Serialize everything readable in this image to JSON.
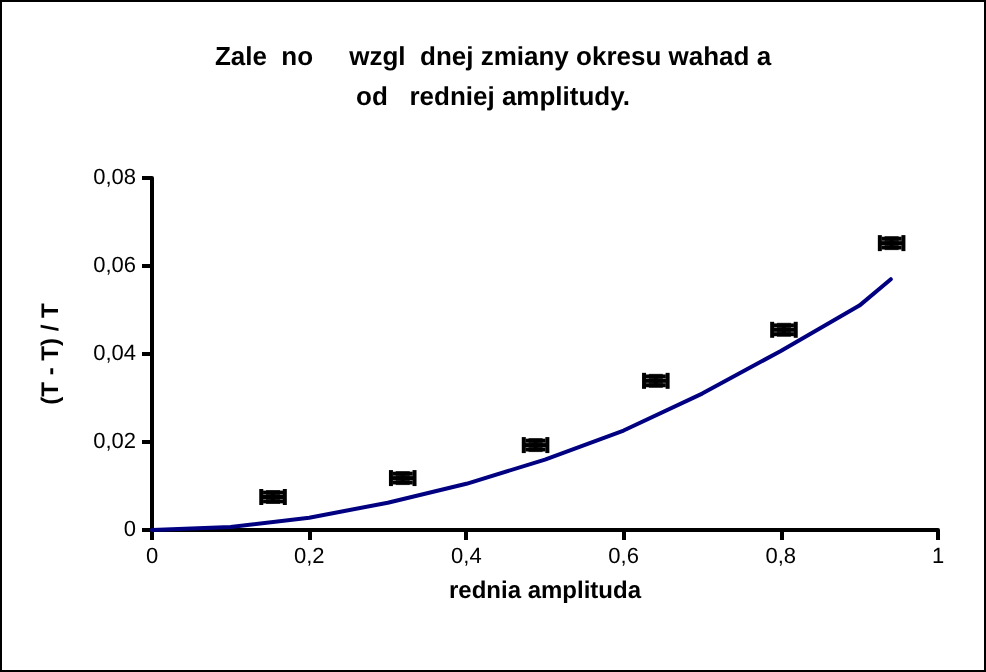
{
  "chart_data": {
    "type": "scatter",
    "title": "Zale  no     wzgl  dnej zmiany okresu wahad a\nod   redniej amplitudy.",
    "xlabel": "rednia amplituda",
    "ylabel": "(T - T) / T",
    "xlim": [
      0,
      1
    ],
    "xticks": [
      0,
      {
        "value": 0.2,
        "label": "0,2"
      },
      {
        "value": 0.4,
        "label": "0,4"
      },
      {
        "value": 0.6,
        "label": "0,6"
      },
      {
        "value": 0.8,
        "label": "0,8"
      },
      1
    ],
    "ylim": [
      0,
      0.08
    ],
    "yticks": [
      0,
      {
        "value": 0.02,
        "label": "0,02"
      },
      {
        "value": 0.04,
        "label": "0,04"
      },
      {
        "value": 0.06,
        "label": "0,06"
      },
      {
        "value": 0.08,
        "label": "0,08"
      }
    ],
    "grid": false,
    "series": [
      {
        "type": "line",
        "color": "#000080",
        "marker": "none",
        "line_style": "solid",
        "x": [
          0,
          0.1,
          0.2,
          0.3,
          0.4,
          0.5,
          0.6,
          0.7,
          0.8,
          0.9,
          0.94
        ],
        "values": [
          0,
          0.0007,
          0.0028,
          0.0062,
          0.0105,
          0.016,
          0.0226,
          0.031,
          0.0407,
          0.051,
          0.057
        ]
      },
      {
        "color": "#000000",
        "marker": "square",
        "x": [
          0.154,
          0.319,
          0.488,
          0.641,
          0.804,
          0.941
        ],
        "values": [
          0.0075,
          0.0118,
          0.0193,
          0.0339,
          0.0455,
          0.0652
        ],
        "xerrors": [
          0.015,
          0.015,
          0.015,
          0.015,
          0.015,
          0.015
        ],
        "errors": [
          0.001,
          0.001,
          0.001,
          0.001,
          0.001,
          0.001
        ]
      }
    ]
  }
}
